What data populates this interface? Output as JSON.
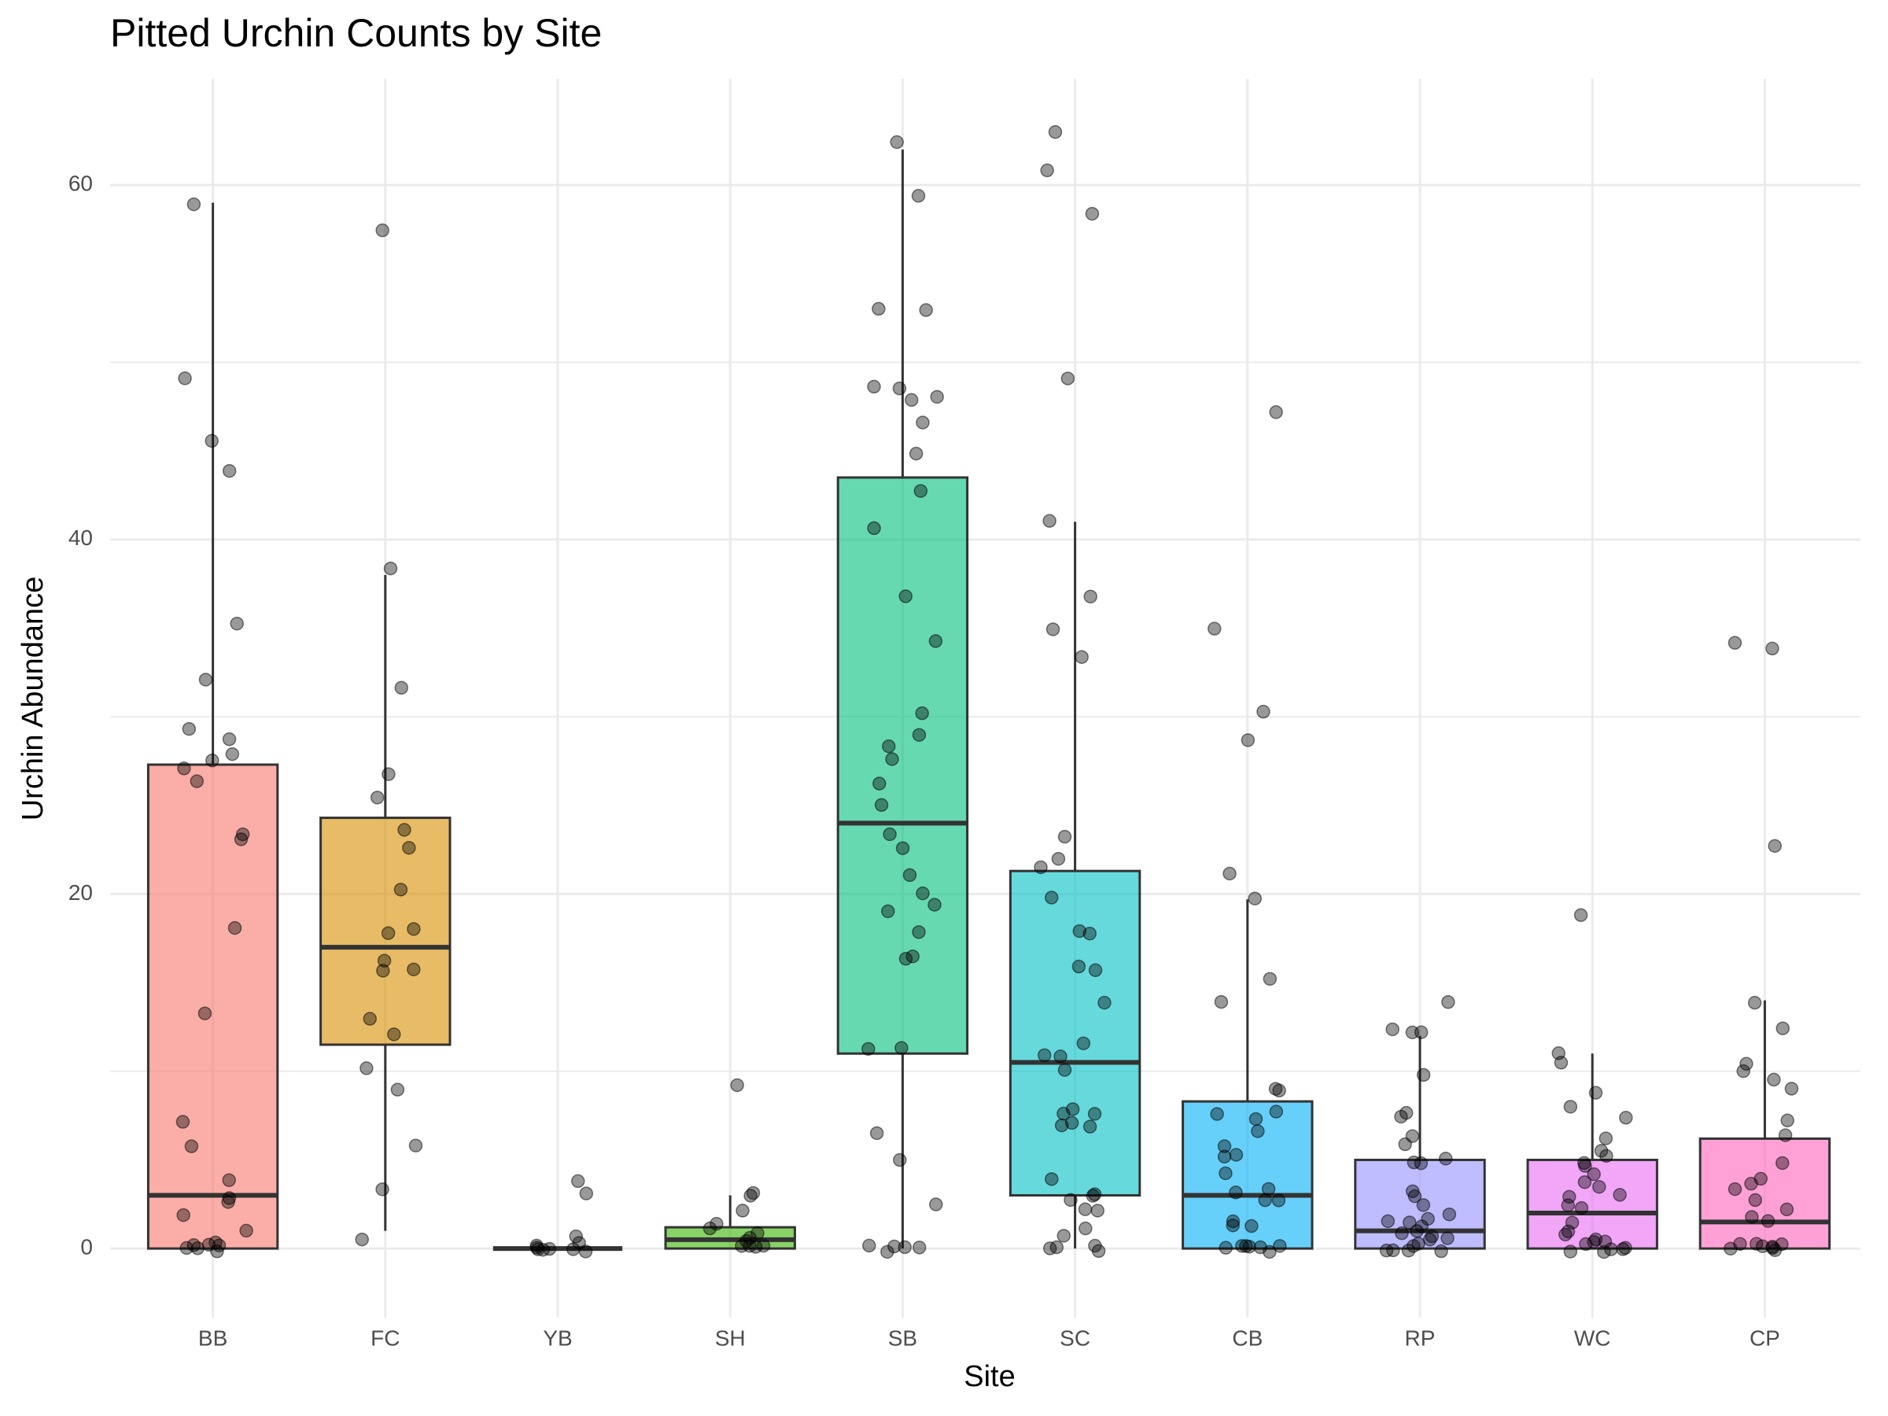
{
  "chart_data": {
    "type": "box",
    "title": "Pitted Urchin Counts by Site",
    "x_label": "Site",
    "y_label": "Urchin Abundance",
    "categories": [
      "BB",
      "FC",
      "YB",
      "SH",
      "SB",
      "SC",
      "CB",
      "RP",
      "WC",
      "CP"
    ],
    "colors": [
      "#F8766D",
      "#D89000",
      "#A3A500",
      "#39B600",
      "#00BF7D",
      "#00BFC4",
      "#00B0F6",
      "#9590FF",
      "#E76BF3",
      "#FF62BC"
    ],
    "ylim": [
      -3.9,
      66
    ],
    "yticks": [
      0,
      20,
      40,
      60
    ],
    "minor_grid": [
      10,
      30,
      50
    ],
    "grid": true,
    "boxes": [
      {
        "whisker_low": 0,
        "q1": 0,
        "median": 3,
        "q3": 27.3,
        "whisker_high": 59
      },
      {
        "whisker_low": 1,
        "q1": 11.5,
        "median": 17,
        "q3": 24.3,
        "whisker_high": 38
      },
      {
        "whisker_low": 0,
        "q1": 0,
        "median": 0,
        "q3": 0,
        "whisker_high": 0
      },
      {
        "whisker_low": 0,
        "q1": 0,
        "median": 0.5,
        "q3": 1.2,
        "whisker_high": 3
      },
      {
        "whisker_low": 0,
        "q1": 11,
        "median": 24,
        "q3": 43.5,
        "whisker_high": 62
      },
      {
        "whisker_low": 0,
        "q1": 3,
        "median": 10.5,
        "q3": 21.3,
        "whisker_high": 41
      },
      {
        "whisker_low": 0,
        "q1": 0,
        "median": 3,
        "q3": 8.3,
        "whisker_high": 19.7
      },
      {
        "whisker_low": 0,
        "q1": 0,
        "median": 1,
        "q3": 5,
        "whisker_high": 12
      },
      {
        "whisker_low": 0,
        "q1": 0,
        "median": 2,
        "q3": 5,
        "whisker_high": 11
      },
      {
        "whisker_low": 0,
        "q1": 0,
        "median": 1.5,
        "q3": 6.2,
        "whisker_high": 14
      }
    ],
    "points": [
      [
        44,
        35.3,
        29.4,
        28,
        27.5,
        27.2,
        26.2,
        23.2,
        23,
        18.1,
        13.2,
        7.1,
        5.8,
        3.8,
        3,
        2.8,
        1.7,
        1.1,
        0.3,
        0.2,
        0.1,
        0,
        0,
        0,
        0,
        58.8,
        49.1,
        45.7,
        32.1,
        28.9
      ],
      [
        57.5,
        38.2,
        31.8,
        26.7,
        25.3,
        23.6,
        22.8,
        20.3,
        18.2,
        17.7,
        16.3,
        15.8,
        15.6,
        13,
        12,
        10,
        8.9,
        6,
        3.2,
        0.7
      ],
      [
        4,
        3.2,
        0.7,
        0.3,
        0.1,
        0,
        0,
        0,
        0,
        0,
        0
      ],
      [
        9.2,
        3.3,
        3,
        2.3,
        1.5,
        1.1,
        0.8,
        0.6,
        0.3,
        0.1,
        0,
        0,
        0
      ],
      [
        62.3,
        59.2,
        53.2,
        52.9,
        48.5,
        48.4,
        47.9,
        47.8,
        46.5,
        44.9,
        42.7,
        40.8,
        36.7,
        34.4,
        30.2,
        29.1,
        28.5,
        27.5,
        26.2,
        25.1,
        23.3,
        22.7,
        20.9,
        20.1,
        19.3,
        19,
        17.7,
        16.6,
        16.3,
        11.3,
        11.1,
        6.7,
        5.1,
        2.4,
        0.2,
        0,
        0,
        0,
        0
      ],
      [
        63,
        61,
        58.5,
        49,
        41.1,
        36.9,
        35.1,
        33.2,
        23.2,
        22.1,
        21.4,
        19.7,
        18.1,
        17.6,
        16.1,
        15.8,
        13.7,
        11.6,
        11,
        10.8,
        10.1,
        7.7,
        7.7,
        7.6,
        7.2,
        7,
        6.8,
        4,
        3,
        3,
        2.9,
        2.3,
        2.2,
        1,
        0.8,
        0.2,
        0,
        0,
        0
      ],
      [
        47.3,
        35,
        30.2,
        28.5,
        21,
        19.7,
        15.1,
        14.1,
        9.1,
        8.9,
        7.7,
        7.6,
        7.3,
        6.6,
        5.7,
        5.3,
        5.2,
        4.3,
        3.3,
        3.1,
        2.8,
        2.7,
        1.4,
        1.3,
        1.2,
        0.3,
        0.3,
        0.2,
        0,
        0,
        0,
        0
      ],
      [
        14.1,
        12.3,
        12.3,
        12.2,
        9.7,
        7.6,
        7.3,
        6.2,
        5.7,
        5.2,
        4.9,
        4.7,
        3.3,
        2.8,
        2.3,
        2.1,
        1.8,
        1.6,
        1.4,
        1.2,
        1.1,
        1,
        0.8,
        0.7,
        0.4,
        0.2,
        0.1,
        0,
        0,
        0,
        0
      ],
      [
        18.7,
        10.9,
        10.4,
        8.7,
        8.2,
        7.3,
        6.2,
        5.6,
        5.4,
        5,
        4.5,
        4.1,
        3.6,
        3.4,
        3.1,
        2.9,
        2.4,
        2.3,
        1.3,
        1.1,
        0.8,
        0.6,
        0.4,
        0.3,
        0.2,
        0.1,
        0,
        0,
        0,
        0
      ],
      [
        34.2,
        34,
        22.8,
        14,
        12.3,
        10.6,
        9.9,
        9.4,
        9.1,
        7.1,
        6.5,
        4.9,
        4,
        3.6,
        3.3,
        2.7,
        2.3,
        1.7,
        1.5,
        0.4,
        0.3,
        0.2,
        0.1,
        0,
        0,
        0,
        0
      ]
    ]
  }
}
